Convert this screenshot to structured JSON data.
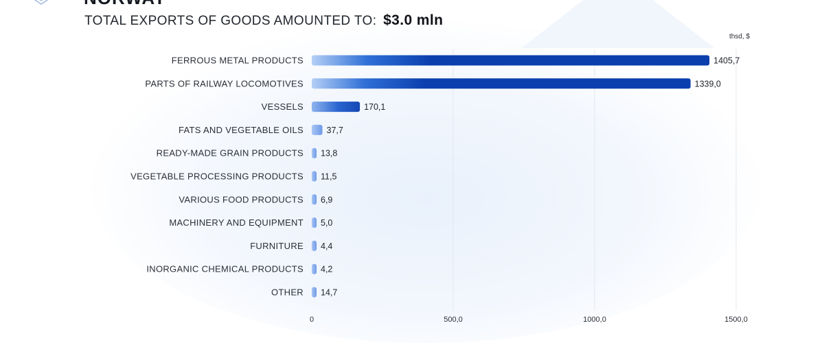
{
  "header": {
    "clipped_heading": "NORWAY",
    "title_prefix": "TOTAL EXPORTS OF GOODS AMOUNTED TO:",
    "title_amount": "$3.0 mln"
  },
  "colors": {
    "bar_dark": "#0b3fae",
    "bar_light": "#a9c6f5",
    "grid": "#e3e8ef"
  },
  "chart_data": {
    "type": "bar",
    "orientation": "horizontal",
    "unit": "thsd, $",
    "categories": [
      "FERROUS METAL PRODUCTS",
      "PARTS OF RAILWAY LOCOMOTIVES",
      "VESSELS",
      "FATS AND VEGETABLE OILS",
      "READY-MADE GRAIN PRODUCTS",
      "VEGETABLE PROCESSING PRODUCTS",
      "VARIOUS FOOD PRODUCTS",
      "MACHINERY AND EQUIPMENT",
      "FURNITURE",
      "INORGANIC CHEMICAL PRODUCTS",
      "OTHER"
    ],
    "values": [
      1405.7,
      1339.0,
      170.1,
      37.7,
      13.8,
      11.5,
      6.9,
      5.0,
      4.4,
      4.2,
      14.7
    ],
    "value_labels": [
      "1405,7",
      "1339,0",
      "170,1",
      "37,7",
      "13,8",
      "11,5",
      "6,9",
      "5,0",
      "4,4",
      "4,2",
      "14,7"
    ],
    "x_ticks": [
      0,
      500,
      1000,
      1500
    ],
    "x_tick_labels": [
      "0",
      "500,0",
      "1000,0",
      "1500,0"
    ],
    "xlim": [
      0,
      1500
    ],
    "grid": true,
    "legend": false
  }
}
